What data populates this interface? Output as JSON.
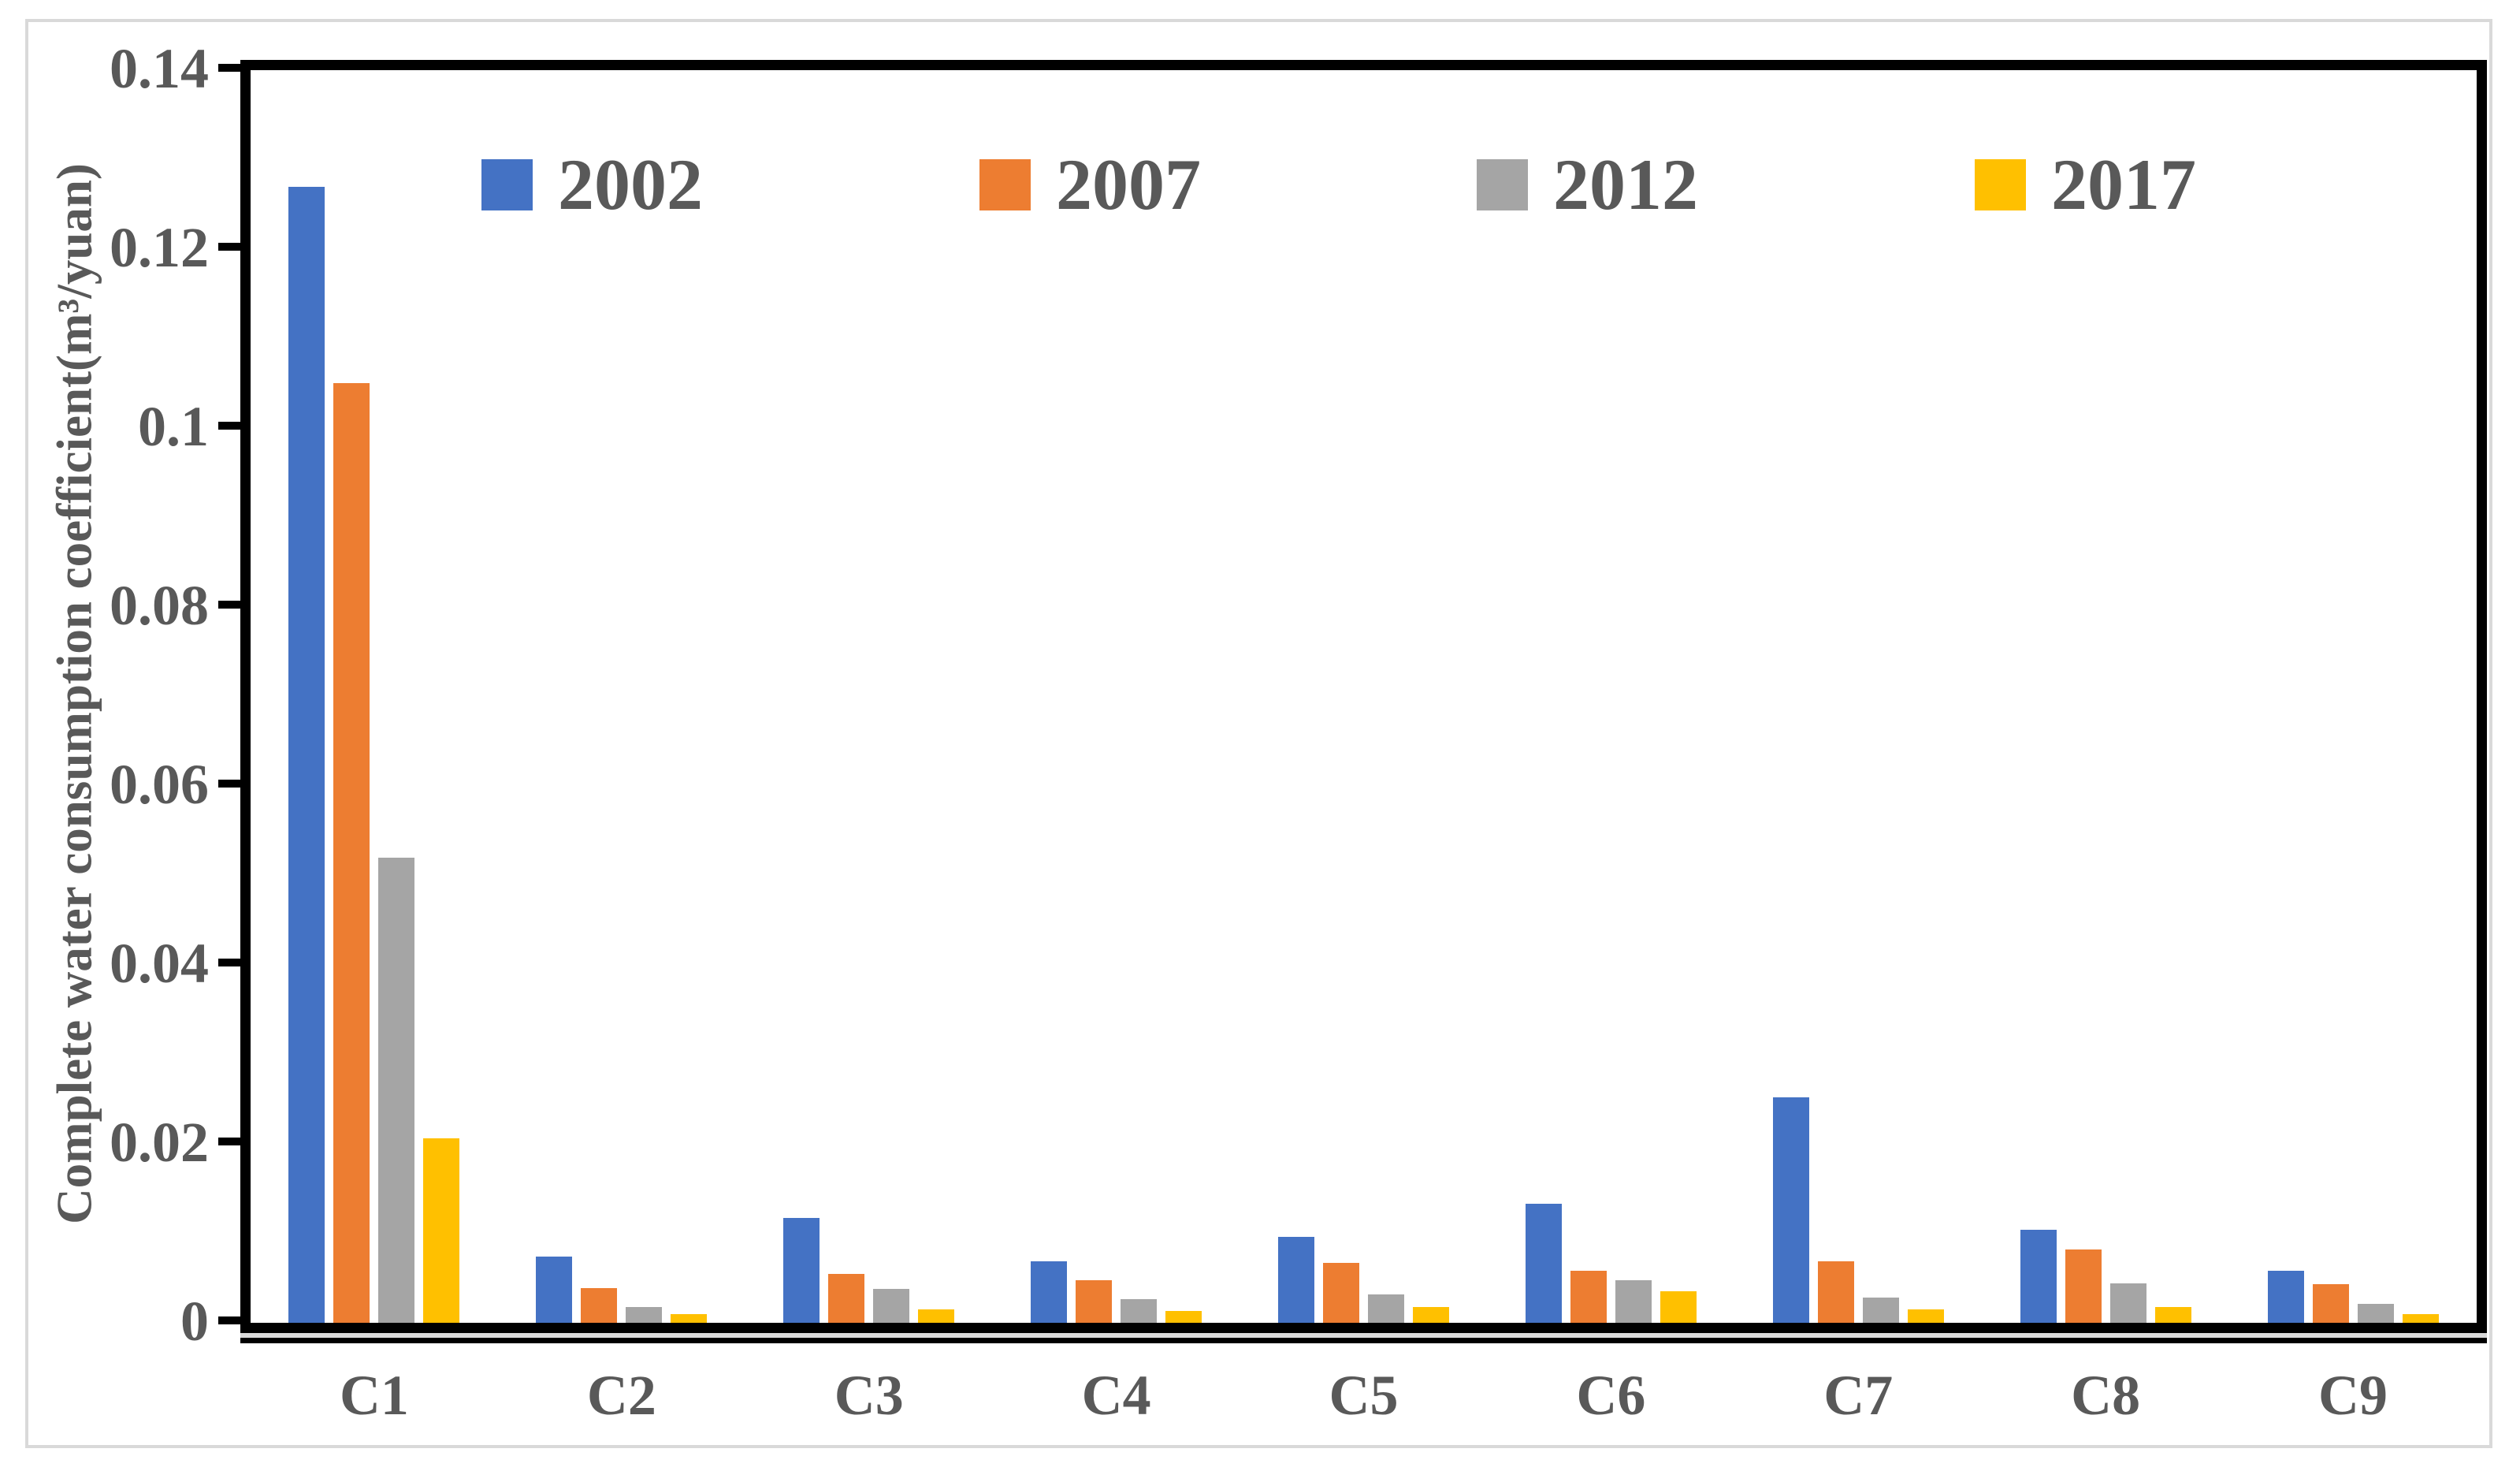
{
  "chart_data": {
    "type": "bar",
    "title": "",
    "xlabel": "",
    "ylabel": "Complete water consumption coefficient(m³/yuan)",
    "categories": [
      "C1",
      "C2",
      "C3",
      "C4",
      "C5",
      "C6",
      "C7",
      "C8",
      "C9"
    ],
    "series": [
      {
        "name": "2002",
        "color": "#4472C4",
        "values": [
          0.127,
          0.0074,
          0.0117,
          0.0069,
          0.0096,
          0.0133,
          0.0252,
          0.0104,
          0.0058
        ]
      },
      {
        "name": "2007",
        "color": "#ED7D31",
        "values": [
          0.105,
          0.0039,
          0.0055,
          0.0048,
          0.0067,
          0.0058,
          0.0069,
          0.0082,
          0.0043
        ]
      },
      {
        "name": "2012",
        "color": "#A5A5A5",
        "values": [
          0.052,
          0.0018,
          0.0038,
          0.0026,
          0.0032,
          0.0048,
          0.0028,
          0.0044,
          0.0021
        ]
      },
      {
        "name": "2017",
        "color": "#FFC000",
        "values": [
          0.0206,
          0.001,
          0.0015,
          0.0013,
          0.0018,
          0.0035,
          0.0015,
          0.0018,
          0.001
        ]
      }
    ],
    "ylim": [
      0,
      0.14
    ],
    "y_tick_values": [
      0.14,
      0.12,
      0.1,
      0.08,
      0.06,
      0.04,
      0.02,
      0
    ],
    "y_tick_labels": [
      "0.14",
      "0.12",
      "0.1",
      "0.08",
      "0.06",
      "0.04",
      "0.02",
      "0"
    ],
    "legend_position": "top-inside",
    "grid": false
  },
  "colors": {
    "bar_2002": "#4472C4",
    "bar_2007": "#ED7D31",
    "bar_2012": "#A5A5A5",
    "bar_2017": "#FFC000",
    "label_text": "#595959",
    "plot_frame": "#000000",
    "outer_border": "#D9D9D9",
    "background": "#FFFFFF"
  }
}
